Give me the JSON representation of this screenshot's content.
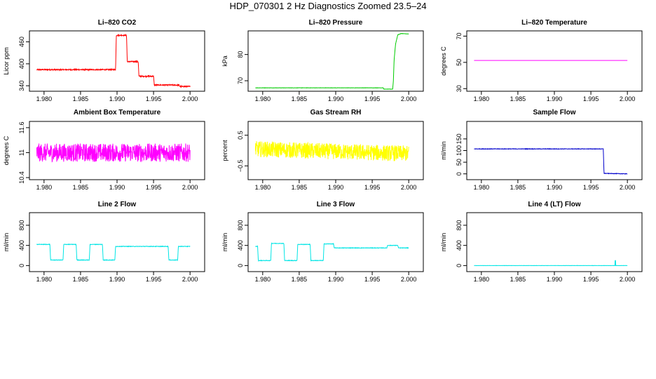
{
  "title": "HDP_070301  2 Hz Diagnostics Zoomed 23.5–24",
  "chart_data": [
    {
      "type": "line",
      "title": "Li–820 CO2",
      "ylabel": "Licor ppm",
      "color": "#ff0000",
      "xlim": [
        1.978,
        2.002
      ],
      "xticks": [
        "1.980",
        "1.985",
        "1.990",
        "1.995",
        "2.000"
      ],
      "ylim": [
        325,
        490
      ],
      "yticks": [
        340,
        400,
        460
      ],
      "series": [
        {
          "x": [
            1.979,
            1.9898,
            1.9899,
            1.9913,
            1.9914,
            1.9929,
            1.993,
            1.995,
            1.9951,
            1.9985,
            1.9986,
            2.0
          ],
          "y": [
            384,
            384,
            478,
            478,
            406,
            406,
            366,
            366,
            342,
            342,
            338,
            338
          ],
          "noise": 1.5
        }
      ]
    },
    {
      "type": "line",
      "title": "Li–820 Pressure",
      "ylabel": "kPa",
      "color": "#00cc00",
      "xlim": [
        1.978,
        2.002
      ],
      "xticks": [
        "1.980",
        "1.985",
        "1.990",
        "1.995",
        "2.000"
      ],
      "ylim": [
        66,
        89
      ],
      "yticks": [
        70,
        80
      ],
      "series": [
        {
          "x": [
            1.979,
            1.9965,
            1.9966,
            1.9978,
            1.9979,
            1.998,
            1.9982,
            1.9985,
            1.999,
            2.0
          ],
          "y": [
            67.3,
            67.3,
            66.8,
            66.8,
            70,
            78,
            84,
            87.5,
            88,
            87.8
          ],
          "noise": 0.05
        }
      ]
    },
    {
      "type": "line",
      "title": "Li–820 Temperature",
      "ylabel": "degrees C",
      "color": "#ff00ff",
      "xlim": [
        1.978,
        2.002
      ],
      "xticks": [
        "1.980",
        "1.985",
        "1.990",
        "1.995",
        "2.000"
      ],
      "ylim": [
        28,
        74
      ],
      "yticks": [
        30,
        50,
        70
      ],
      "series": [
        {
          "x": [
            1.979,
            2.0
          ],
          "y": [
            51.5,
            51.5
          ],
          "noise": 0
        }
      ]
    },
    {
      "type": "line",
      "title": "Ambient Box Temperature",
      "ylabel": "degrees C",
      "color": "#ff00ff",
      "xlim": [
        1.978,
        2.002
      ],
      "xticks": [
        "1.980",
        "1.985",
        "1.990",
        "1.995",
        "2.000"
      ],
      "ylim": [
        10.35,
        11.75
      ],
      "yticks": [
        10.4,
        11.0,
        11.6
      ],
      "series": [
        {
          "x": [
            1.979,
            2.0
          ],
          "y": [
            11.0,
            11.0
          ],
          "noise": 0.22
        }
      ]
    },
    {
      "type": "line",
      "title": "Gas Stream RH",
      "ylabel": "percent",
      "color": "#ffff00",
      "xlim": [
        1.978,
        2.002
      ],
      "xticks": [
        "1.980",
        "1.985",
        "1.990",
        "1.995",
        "2.000"
      ],
      "ylim": [
        -0.95,
        0.95
      ],
      "yticks": [
        -0.5,
        0.5
      ],
      "series": [
        {
          "x": [
            1.979,
            1.9925,
            2.0
          ],
          "y": [
            0.05,
            -0.05,
            -0.1
          ],
          "noise": 0.26
        }
      ]
    },
    {
      "type": "line",
      "title": "Sample Flow",
      "ylabel": "ml/min",
      "color": "#0000cc",
      "xlim": [
        1.978,
        2.002
      ],
      "xticks": [
        "1.980",
        "1.985",
        "1.990",
        "1.995",
        "2.000"
      ],
      "ylim": [
        -25,
        225
      ],
      "yticks": [
        0,
        50,
        100,
        150
      ],
      "series": [
        {
          "x": [
            1.979,
            1.9967,
            1.9968,
            2.0
          ],
          "y": [
            107,
            107,
            2,
            0
          ],
          "noise": 1
        }
      ]
    },
    {
      "type": "line",
      "title": "Line 2 Flow",
      "ylabel": "ml/min",
      "color": "#00e5e5",
      "xlim": [
        1.978,
        2.002
      ],
      "xticks": [
        "1.980",
        "1.985",
        "1.990",
        "1.995",
        "2.000"
      ],
      "ylim": [
        -120,
        1050
      ],
      "yticks": [
        0,
        400,
        800
      ],
      "series": [
        {
          "x": [
            1.979,
            1.9808,
            1.9809,
            1.9826,
            1.9827,
            1.9844,
            1.9845,
            1.9862,
            1.9863,
            1.988,
            1.9881,
            1.9897,
            1.9898,
            1.997,
            1.9971,
            1.9983,
            1.9984,
            2.0
          ],
          "y": [
            420,
            420,
            110,
            110,
            420,
            420,
            110,
            110,
            420,
            420,
            110,
            110,
            380,
            380,
            110,
            110,
            380,
            380
          ],
          "noise": 5
        }
      ]
    },
    {
      "type": "line",
      "title": "Line 3 Flow",
      "ylabel": "ml/min",
      "color": "#00e5e5",
      "xlim": [
        1.978,
        2.002
      ],
      "xticks": [
        "1.980",
        "1.985",
        "1.990",
        "1.995",
        "2.000"
      ],
      "ylim": [
        -120,
        1050
      ],
      "yticks": [
        0,
        400,
        800
      ],
      "series": [
        {
          "x": [
            1.979,
            1.9793,
            1.9794,
            1.9811,
            1.9812,
            1.9829,
            1.983,
            1.9847,
            1.9848,
            1.9865,
            1.9866,
            1.9883,
            1.9884,
            1.9897,
            1.9898,
            1.997,
            1.9971,
            1.9985,
            1.9986,
            2.0
          ],
          "y": [
            380,
            380,
            100,
            100,
            440,
            440,
            100,
            100,
            420,
            420,
            100,
            100,
            430,
            430,
            350,
            350,
            400,
            400,
            350,
            350
          ],
          "noise": 5
        }
      ]
    },
    {
      "type": "line",
      "title": "Line 4 (LT) Flow",
      "ylabel": "ml/min",
      "color": "#00e5e5",
      "xlim": [
        1.978,
        2.002
      ],
      "xticks": [
        "1.980",
        "1.985",
        "1.990",
        "1.995",
        "2.000"
      ],
      "ylim": [
        -120,
        1050
      ],
      "yticks": [
        0,
        400,
        800
      ],
      "series": [
        {
          "x": [
            1.979,
            1.9983,
            1.9983,
            1.9984,
            1.9984,
            2.0
          ],
          "y": [
            0,
            0,
            100,
            100,
            0,
            0
          ],
          "noise": 2
        }
      ]
    }
  ]
}
